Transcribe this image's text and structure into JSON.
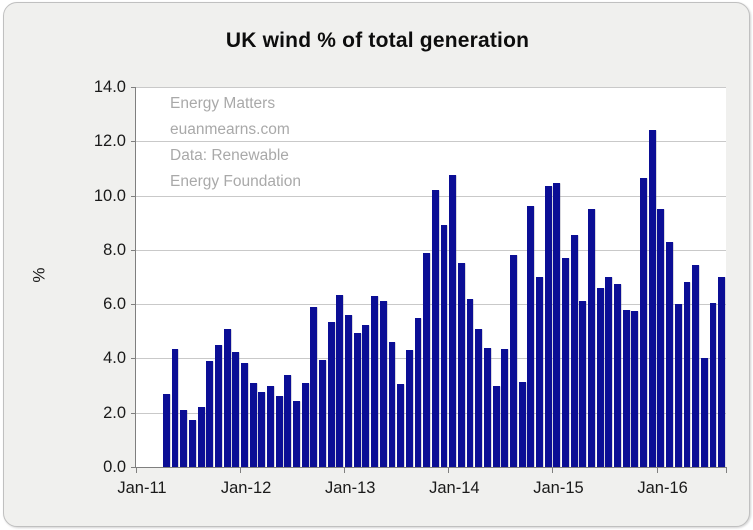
{
  "title": "UK wind % of total generation",
  "watermark": {
    "line1": "Energy Matters",
    "line2": "euanmearns.com",
    "line3": "Data: Renewable",
    "line4": "Energy Foundation"
  },
  "y_axis": {
    "label": "%",
    "tick_labels": [
      "0.0",
      "2.0",
      "4.0",
      "6.0",
      "8.0",
      "10.0",
      "12.0",
      "14.0"
    ],
    "min": 0,
    "max": 14,
    "step": 2
  },
  "x_axis": {
    "tick_labels": [
      "Jan-11",
      "Jan-12",
      "Jan-13",
      "Jan-14",
      "Jan-15",
      "Jan-16"
    ],
    "total_month_slots": 68,
    "data_offset_slots": 3
  },
  "colors": {
    "bar": "#0b0e95",
    "grid": "#c9c9c9",
    "axis": "#7f7f7f",
    "chart_bg": "#f0f0ee",
    "plot_bg": "#ffffff",
    "watermark": "#a9a9a9",
    "frame_border": "#c0c0c0",
    "title_text": "#0d0d0d"
  },
  "chart_data": {
    "type": "bar",
    "title": "UK wind % of total generation",
    "xlabel": "",
    "ylabel": "%",
    "ylim": [
      0,
      14
    ],
    "grid": "horizontal",
    "legend": "none",
    "axis_span": {
      "start": "Jan-11",
      "end": "Aug-16"
    },
    "x": [
      "Apr-11",
      "May-11",
      "Jun-11",
      "Jul-11",
      "Aug-11",
      "Sep-11",
      "Oct-11",
      "Nov-11",
      "Dec-11",
      "Jan-12",
      "Feb-12",
      "Mar-12",
      "Apr-12",
      "May-12",
      "Jun-12",
      "Jul-12",
      "Aug-12",
      "Sep-12",
      "Oct-12",
      "Nov-12",
      "Dec-12",
      "Jan-13",
      "Feb-13",
      "Mar-13",
      "Apr-13",
      "May-13",
      "Jun-13",
      "Jul-13",
      "Aug-13",
      "Sep-13",
      "Oct-13",
      "Nov-13",
      "Dec-13",
      "Jan-14",
      "Feb-14",
      "Mar-14",
      "Apr-14",
      "May-14",
      "Jun-14",
      "Jul-14",
      "Aug-14",
      "Sep-14",
      "Oct-14",
      "Nov-14",
      "Dec-14",
      "Jan-15",
      "Feb-15",
      "Mar-15",
      "Apr-15",
      "May-15",
      "Jun-15",
      "Jul-15",
      "Aug-15",
      "Sep-15",
      "Oct-15",
      "Nov-15",
      "Dec-15",
      "Jan-16",
      "Feb-16",
      "Mar-16",
      "Apr-16",
      "May-16",
      "Jun-16",
      "Jul-16",
      "Aug-16"
    ],
    "values": [
      2.7,
      4.35,
      2.1,
      1.75,
      2.2,
      3.9,
      4.5,
      5.1,
      4.25,
      3.85,
      3.1,
      2.75,
      3.0,
      2.6,
      3.4,
      2.45,
      3.1,
      5.9,
      3.95,
      5.35,
      6.35,
      5.6,
      4.95,
      5.25,
      6.3,
      6.1,
      4.6,
      3.05,
      4.3,
      5.5,
      7.9,
      10.2,
      8.9,
      10.75,
      7.5,
      6.2,
      5.1,
      4.4,
      3.0,
      4.35,
      7.8,
      3.15,
      9.6,
      7.0,
      10.35,
      10.45,
      7.7,
      8.55,
      6.1,
      9.5,
      6.6,
      7.0,
      6.75,
      5.8,
      5.75,
      10.65,
      12.4,
      9.5,
      8.3,
      6.0,
      6.8,
      7.45,
      4.0,
      6.05,
      7.0
    ]
  }
}
